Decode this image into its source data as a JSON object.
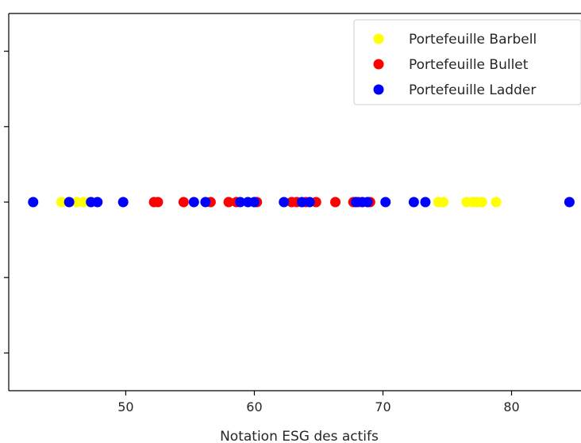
{
  "chart_data": {
    "type": "scatter",
    "title": "",
    "xlabel": "Notation ESG des actifs",
    "ylabel": "",
    "xlim": [
      40.9,
      85.4
    ],
    "ylim": [
      -1,
      1
    ],
    "xticks": [
      50,
      60,
      70,
      80
    ],
    "yticks": [
      -0.8,
      -0.4,
      0,
      0.4,
      0.8
    ],
    "show_ytick_labels": false,
    "grid": false,
    "legend_position": "upper right",
    "series": [
      {
        "name": "Portefeuille Barbell",
        "color": "#ffff00",
        "x": [
          45.0,
          45.6,
          46.2,
          46.7,
          47.2,
          74.3,
          74.7,
          76.5,
          77.0,
          77.3,
          77.7,
          78.8
        ],
        "y": [
          0,
          0,
          0,
          0,
          0,
          0,
          0,
          0,
          0,
          0,
          0,
          0
        ]
      },
      {
        "name": "Portefeuille Bullet",
        "color": "#ff0000",
        "x": [
          52.2,
          52.5,
          54.5,
          56.6,
          58.0,
          58.6,
          60.2,
          62.9,
          63.3,
          64.0,
          64.8,
          66.3,
          67.7,
          68.1,
          69.0
        ],
        "y": [
          0,
          0,
          0,
          0,
          0,
          0,
          0,
          0,
          0,
          0,
          0,
          0,
          0,
          0,
          0
        ]
      },
      {
        "name": "Portefeuille Ladder",
        "color": "#0000ff",
        "x": [
          42.8,
          45.6,
          47.3,
          47.8,
          49.8,
          55.3,
          56.2,
          58.9,
          59.5,
          60.0,
          62.3,
          63.7,
          64.3,
          67.9,
          68.4,
          68.8,
          70.2,
          72.4,
          73.3,
          84.5
        ],
        "y": [
          0,
          0,
          0,
          0,
          0,
          0,
          0,
          0,
          0,
          0,
          0,
          0,
          0,
          0,
          0,
          0,
          0,
          0,
          0,
          0
        ]
      }
    ]
  }
}
